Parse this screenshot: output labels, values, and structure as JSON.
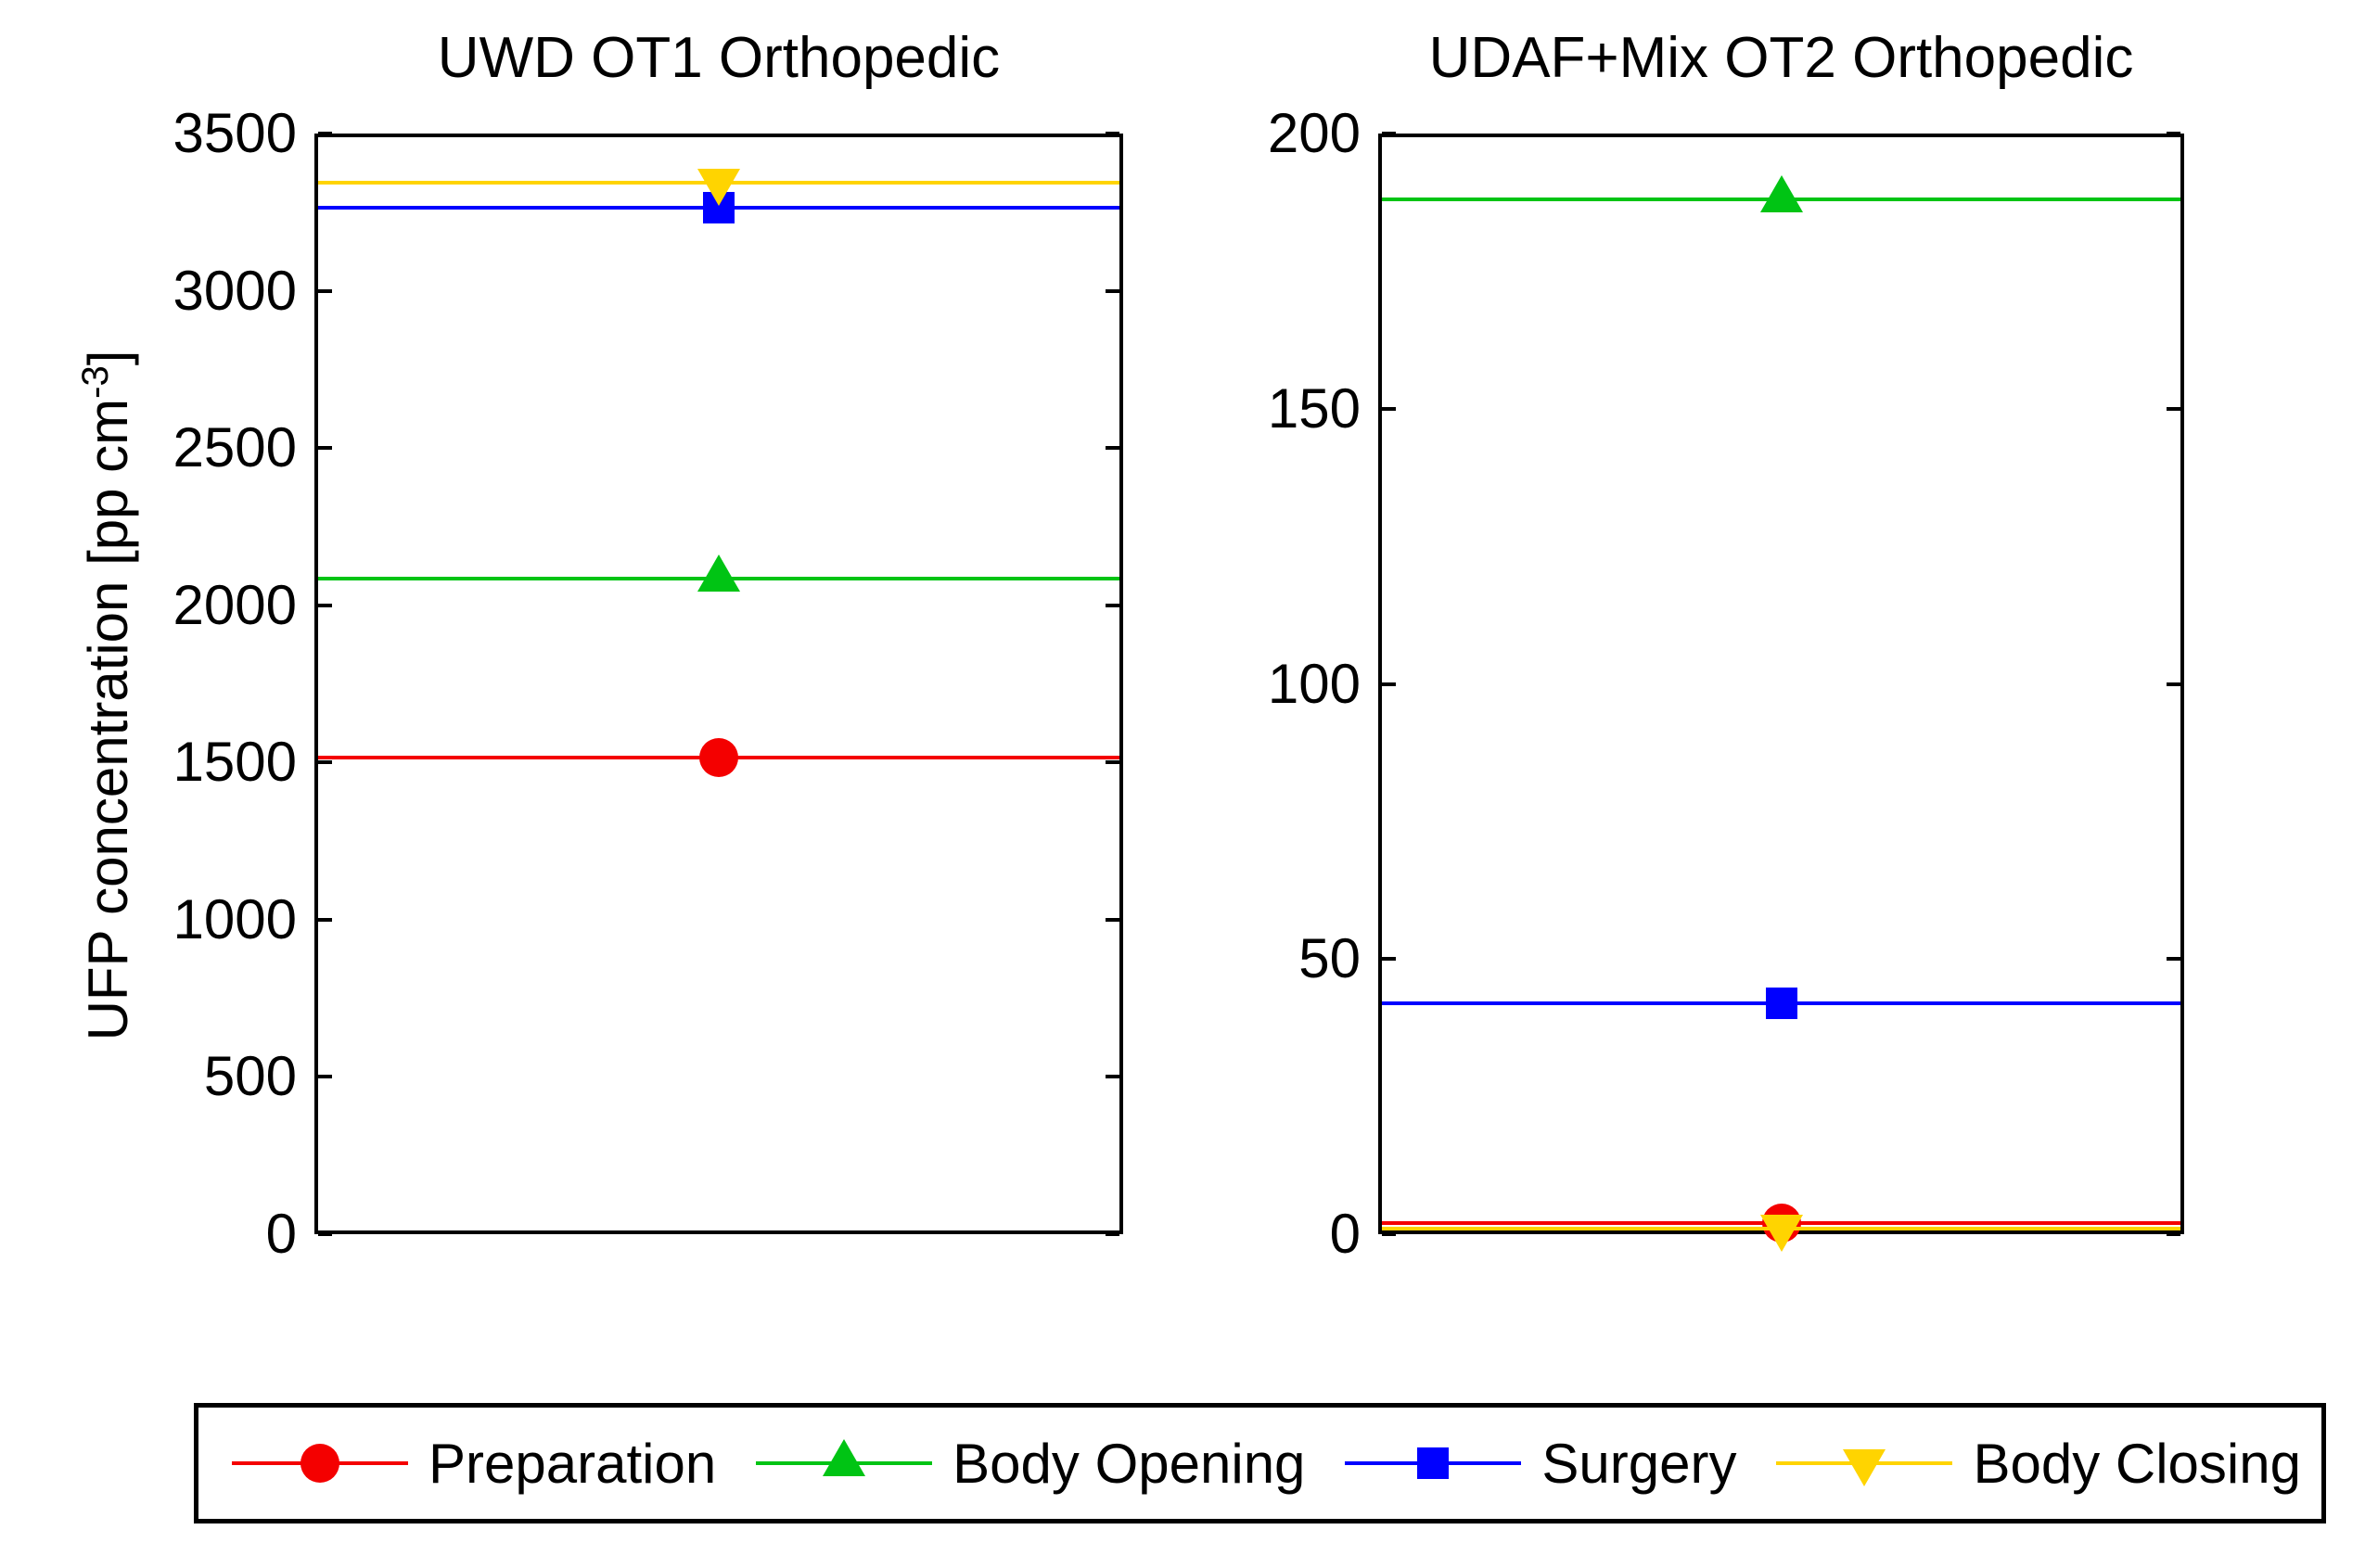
{
  "ylabel": {
    "main": "UFP concentration [pp cm",
    "sup": "-3",
    "close": "]"
  },
  "chart_data": [
    {
      "type": "line",
      "title": "UWD OT1 Orthopedic",
      "ylabel": "UFP concentration [pp cm^-3]",
      "ylim": [
        0,
        3500
      ],
      "yticks": [
        0,
        500,
        1000,
        1500,
        2000,
        2500,
        3000,
        3500
      ],
      "grid": false,
      "line_style": "horizontal-line-across-axes-with-center-marker",
      "series": [
        {
          "name": "Preparation",
          "value": 1515
        },
        {
          "name": "Body Opening",
          "value": 2085
        },
        {
          "name": "Surgery",
          "value": 3265
        },
        {
          "name": "Body Closing",
          "value": 3345
        }
      ]
    },
    {
      "type": "line",
      "title": "UDAF+Mix OT2 Orthopedic",
      "ylabel": "",
      "ylim": [
        0,
        200
      ],
      "yticks": [
        0,
        50,
        100,
        150,
        200
      ],
      "grid": false,
      "line_style": "horizontal-line-across-axes-with-center-marker",
      "series": [
        {
          "name": "Preparation",
          "value": 2
        },
        {
          "name": "Body Opening",
          "value": 188
        },
        {
          "name": "Surgery",
          "value": 42
        },
        {
          "name": "Body Closing",
          "value": 1
        }
      ]
    }
  ],
  "legend": {
    "position": "bottom",
    "entries": [
      {
        "label": "Preparation",
        "color": "#F40000",
        "marker": "circle"
      },
      {
        "label": "Body Opening",
        "color": "#00C414",
        "marker": "triangle-up"
      },
      {
        "label": "Surgery",
        "color": "#0000FF",
        "marker": "square"
      },
      {
        "label": "Body Closing",
        "color": "#FFD400",
        "marker": "triangle-down"
      }
    ]
  }
}
